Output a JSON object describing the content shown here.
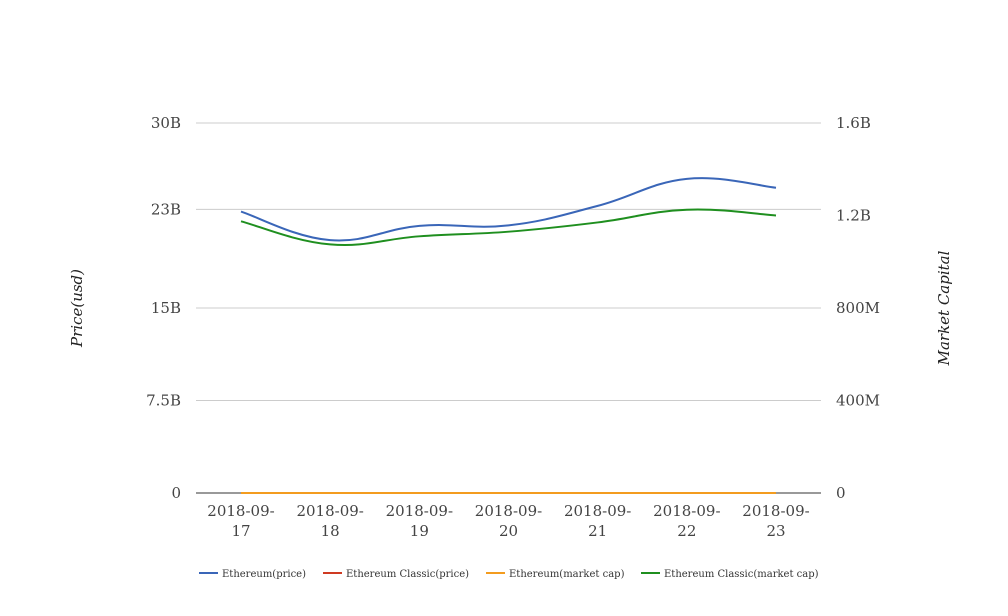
{
  "chart_data": {
    "type": "line",
    "categories": [
      "2018-09-17",
      "2018-09-18",
      "2018-09-19",
      "2018-09-20",
      "2018-09-21",
      "2018-09-22",
      "2018-09-23"
    ],
    "category_lines": [
      [
        "2018-09-",
        "17"
      ],
      [
        "2018-09-",
        "18"
      ],
      [
        "2018-09-",
        "19"
      ],
      [
        "2018-09-",
        "20"
      ],
      [
        "2018-09-",
        "21"
      ],
      [
        "2018-09-",
        "22"
      ],
      [
        "2018-09-",
        "23"
      ]
    ],
    "ylabel": "Price(usd)",
    "y2label": "Market Capital",
    "ylim": [
      0,
      30000000000
    ],
    "y2lim": [
      0,
      1600000000
    ],
    "yticks": [
      {
        "v": 0,
        "label": "0"
      },
      {
        "v": 7500000000,
        "label": "7.5B"
      },
      {
        "v": 15000000000,
        "label": "15B"
      },
      {
        "v": 23000000000,
        "label": "23B"
      },
      {
        "v": 30000000000,
        "label": "30B"
      }
    ],
    "y2ticks": [
      {
        "v": 0,
        "label": "0"
      },
      {
        "v": 400000000,
        "label": "400M"
      },
      {
        "v": 800000000,
        "label": "800M"
      },
      {
        "v": 1200000000,
        "label": "1.2B"
      },
      {
        "v": 1600000000,
        "label": "1.6B"
      }
    ],
    "grid": true,
    "legend_position": "bottom",
    "series": [
      {
        "name": "Ethereum(price)",
        "color": "#3a66b8",
        "axis": "left",
        "values": [
          22820000000,
          20500000000,
          21660000000,
          21700000000,
          23280000000,
          25470000000,
          24750000000
        ]
      },
      {
        "name": "Ethereum Classic(price)",
        "color": "#cf3a22",
        "axis": "left",
        "values": [
          0,
          0,
          0,
          0,
          0,
          0,
          0
        ]
      },
      {
        "name": "Ethereum(market cap)",
        "color": "#f39c1f",
        "axis": "right",
        "values": [
          0,
          0,
          0,
          0,
          0,
          0,
          0
        ]
      },
      {
        "name": "Ethereum Classic(market cap)",
        "color": "#1f8f1f",
        "axis": "right",
        "values": [
          1175000000,
          1075000000,
          1110000000,
          1130000000,
          1170000000,
          1225000000,
          1200000000
        ]
      }
    ]
  }
}
